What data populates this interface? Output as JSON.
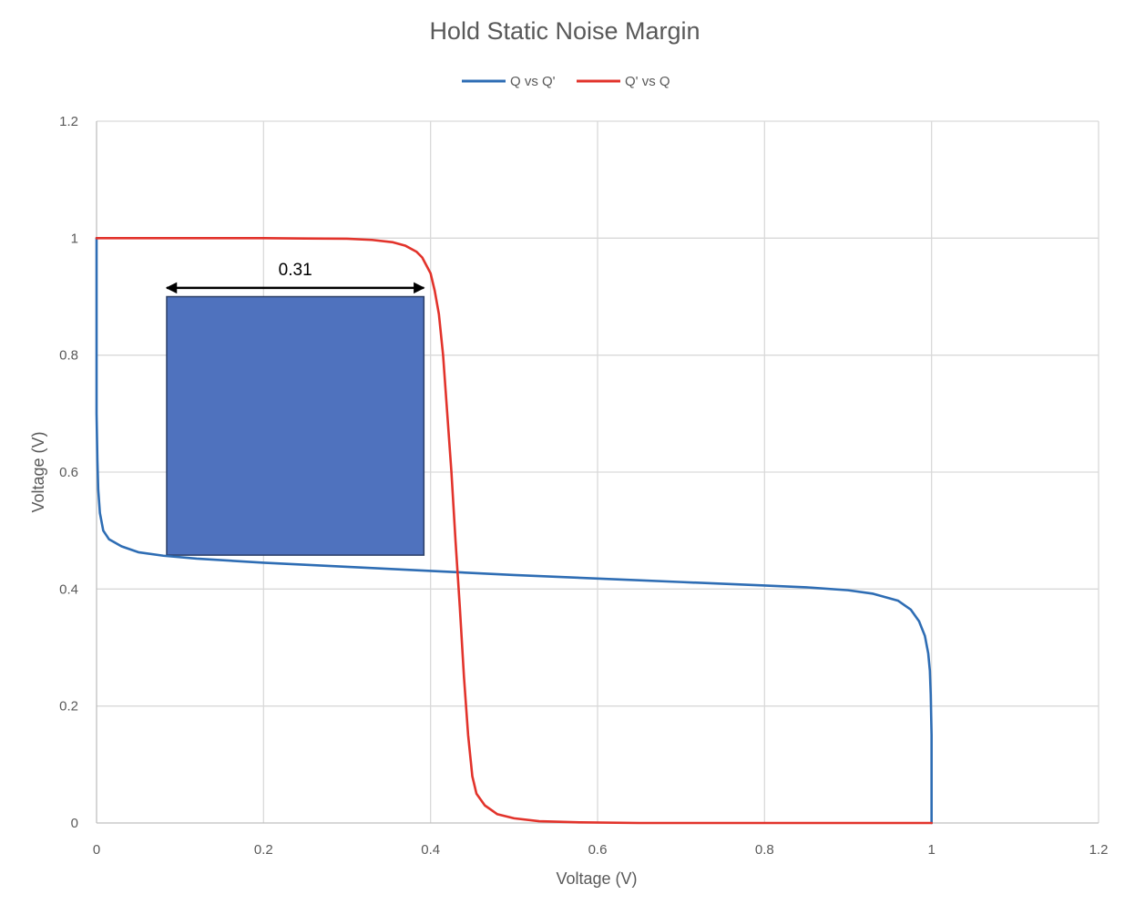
{
  "chart_data": {
    "type": "line",
    "title": "Hold Static Noise Margin",
    "xlabel": "Voltage (V)",
    "ylabel": "Voltage (V)",
    "xlim": [
      0,
      1.2
    ],
    "ylim": [
      0,
      1.2
    ],
    "x_ticks": [
      "0",
      "0.2",
      "0.4",
      "0.6",
      "0.8",
      "1",
      "1.2"
    ],
    "y_ticks": [
      "0",
      "0.2",
      "0.4",
      "0.6",
      "0.8",
      "1",
      "1.2"
    ],
    "grid": true,
    "legend_position": "top",
    "series": [
      {
        "name": "Q vs Q'",
        "color": "#2E6DB4",
        "points": [
          [
            0,
            1.0
          ],
          [
            0,
            0.85
          ],
          [
            0,
            0.7
          ],
          [
            0.001,
            0.62
          ],
          [
            0.002,
            0.57
          ],
          [
            0.004,
            0.53
          ],
          [
            0.008,
            0.5
          ],
          [
            0.015,
            0.485
          ],
          [
            0.03,
            0.473
          ],
          [
            0.05,
            0.463
          ],
          [
            0.08,
            0.457
          ],
          [
            0.12,
            0.452
          ],
          [
            0.2,
            0.445
          ],
          [
            0.3,
            0.438
          ],
          [
            0.4,
            0.431
          ],
          [
            0.5,
            0.424
          ],
          [
            0.6,
            0.418
          ],
          [
            0.7,
            0.412
          ],
          [
            0.8,
            0.406
          ],
          [
            0.85,
            0.403
          ],
          [
            0.9,
            0.398
          ],
          [
            0.93,
            0.392
          ],
          [
            0.96,
            0.38
          ],
          [
            0.975,
            0.365
          ],
          [
            0.985,
            0.345
          ],
          [
            0.992,
            0.32
          ],
          [
            0.996,
            0.29
          ],
          [
            0.998,
            0.26
          ],
          [
            0.999,
            0.22
          ],
          [
            1.0,
            0.15
          ],
          [
            1.0,
            0.05
          ],
          [
            1.0,
            0.0
          ]
        ]
      },
      {
        "name": "Q' vs Q",
        "color": "#E2332B",
        "points": [
          [
            0,
            1.0
          ],
          [
            0.1,
            1.0
          ],
          [
            0.2,
            1.0
          ],
          [
            0.25,
            0.9995
          ],
          [
            0.3,
            0.999
          ],
          [
            0.33,
            0.997
          ],
          [
            0.355,
            0.993
          ],
          [
            0.37,
            0.987
          ],
          [
            0.383,
            0.977
          ],
          [
            0.39,
            0.967
          ],
          [
            0.4,
            0.94
          ],
          [
            0.405,
            0.91
          ],
          [
            0.41,
            0.87
          ],
          [
            0.415,
            0.8
          ],
          [
            0.42,
            0.7
          ],
          [
            0.425,
            0.6
          ],
          [
            0.43,
            0.48
          ],
          [
            0.435,
            0.37
          ],
          [
            0.44,
            0.25
          ],
          [
            0.445,
            0.15
          ],
          [
            0.45,
            0.08
          ],
          [
            0.455,
            0.05
          ],
          [
            0.465,
            0.03
          ],
          [
            0.48,
            0.015
          ],
          [
            0.5,
            0.008
          ],
          [
            0.53,
            0.003
          ],
          [
            0.58,
            0.001
          ],
          [
            0.65,
            0.0
          ],
          [
            0.8,
            0.0
          ],
          [
            1.0,
            0.0
          ]
        ]
      }
    ],
    "annotations": [
      {
        "type": "square",
        "x0": 0.084,
        "x1": 0.392,
        "y0": 0.458,
        "y1": 0.9,
        "color": "#4F72BE"
      },
      {
        "type": "double-arrow",
        "x0": 0.084,
        "x1": 0.392,
        "y": 0.915,
        "label": "0.31"
      }
    ]
  }
}
